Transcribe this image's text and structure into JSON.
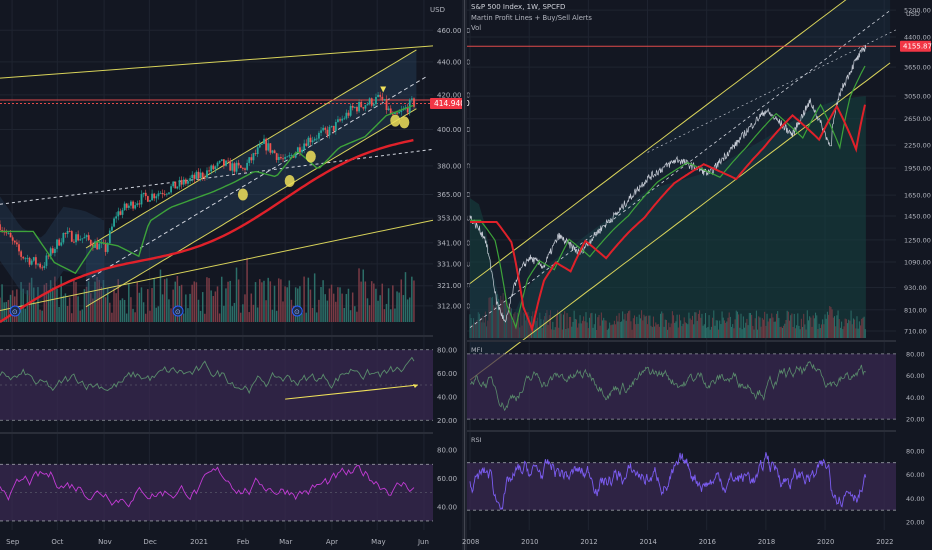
{
  "colors": {
    "background": "#131722",
    "grid": "#1f2430",
    "up": "#26a69a",
    "down": "#ef5350",
    "channel": "#d8d35a",
    "ma_long": "#e0212a",
    "ma_mid": "#3da33a",
    "rsi_fill": "#3a2a52",
    "mfi_line": "#5a8c6c",
    "rsi_line": "#7b5cf0",
    "rsi_pink": "#c23bd4",
    "price_tag": "#f23645",
    "highlight": "#f0e15a"
  },
  "left_chart": {
    "price_axis": {
      "ticks": [
        "460.0000",
        "440.0000",
        "420.0000",
        "400.0000",
        "380.0000",
        "365.0000",
        "353.0000",
        "341.0000",
        "331.0000",
        "321.0000",
        "312.0000"
      ],
      "tick_values": [
        460,
        440,
        420,
        400,
        380,
        365,
        353,
        341,
        331,
        321,
        312
      ],
      "unit": "USD",
      "current_price": "414.9400",
      "current_value": 414.94
    },
    "time_axis": {
      "labels": [
        "Sep",
        "Oct",
        "Nov",
        "Dec",
        "2021",
        "Feb",
        "Mar",
        "Apr",
        "May",
        "Jun"
      ]
    },
    "osc1_axis": {
      "ticks": [
        "80.00",
        "60.00",
        "40.00",
        "20.00"
      ],
      "values": [
        80,
        60,
        40,
        20
      ]
    },
    "osc2_axis": {
      "ticks": [
        "80.00",
        "60.00",
        "40.00"
      ],
      "values": [
        80,
        60,
        40
      ]
    },
    "marker_glyph": "⊙"
  },
  "right_chart": {
    "title": "S&P 500 Index, 1W, SPCFD",
    "indicator": "Martin Profit Lines + Buy/Sell Alerts",
    "volume_label": "Vol",
    "price_axis": {
      "unit": "USD",
      "ticks": [
        "5200.00",
        "4400.00",
        "3650.00",
        "3050.00",
        "2650.00",
        "2250.00",
        "1950.00",
        "1650.00",
        "1450.00",
        "1250.00",
        "1090.00",
        "930.00",
        "810.00",
        "710.00"
      ],
      "tick_values": [
        5200,
        4400,
        3650,
        3050,
        2650,
        2250,
        1950,
        1650,
        1450,
        1250,
        1090,
        930,
        810,
        710
      ],
      "current_price": "4155.87",
      "current_value": 4155.87
    },
    "time_axis": {
      "labels": [
        "2008",
        "2010",
        "2012",
        "2014",
        "2016",
        "2018",
        "2020",
        "2022"
      ]
    },
    "mfi_label": "MFI",
    "rsi_label": "RSI",
    "mfi_axis": {
      "ticks": [
        "80.00",
        "60.00",
        "40.00",
        "20.00"
      ],
      "values": [
        80,
        60,
        40,
        20
      ]
    },
    "rsi_axis": {
      "ticks": [
        "80.00",
        "60.00",
        "40.00",
        "20.00"
      ],
      "values": [
        80,
        60,
        40,
        20
      ]
    }
  },
  "chart_data": [
    {
      "type": "candlestick",
      "title": "",
      "x_range": [
        "2020-08-24",
        "2021-06-07"
      ],
      "ylim": [
        305,
        470
      ],
      "y_scale": "log",
      "series": [
        {
          "name": "",
          "values": [
            {
              "d": "2020-08-24",
              "v": 350
            },
            {
              "d": "2020-09-07",
              "v": 335
            },
            {
              "d": "2020-09-21",
              "v": 330
            },
            {
              "d": "2020-10-05",
              "v": 345
            },
            {
              "d": "2020-10-19",
              "v": 343
            },
            {
              "d": "2020-11-02",
              "v": 338
            },
            {
              "d": "2020-11-09",
              "v": 355
            },
            {
              "d": "2020-11-23",
              "v": 362
            },
            {
              "d": "2020-12-07",
              "v": 366
            },
            {
              "d": "2020-12-21",
              "v": 370
            },
            {
              "d": "2021-01-04",
              "v": 375
            },
            {
              "d": "2021-01-18",
              "v": 381
            },
            {
              "d": "2021-02-01",
              "v": 378
            },
            {
              "d": "2021-02-15",
              "v": 392
            },
            {
              "d": "2021-03-01",
              "v": 382
            },
            {
              "d": "2021-03-15",
              "v": 394
            },
            {
              "d": "2021-04-01",
              "v": 400
            },
            {
              "d": "2021-04-15",
              "v": 412
            },
            {
              "d": "2021-05-03",
              "v": 418
            },
            {
              "d": "2021-05-12",
              "v": 406
            },
            {
              "d": "2021-05-24",
              "v": 415
            }
          ]
        }
      ]
    },
    {
      "type": "candlestick",
      "title": "S&P 500 Index, 1W, SPCFD",
      "x_range": [
        "2008-01-01",
        "2022-06-01"
      ],
      "ylim": [
        680,
        5400
      ],
      "y_scale": "log",
      "series": [
        {
          "name": "",
          "values": [
            {
              "d": "2008.0",
              "v": 1440
            },
            {
              "d": "2008.5",
              "v": 1270
            },
            {
              "d": "2008.9",
              "v": 850
            },
            {
              "d": "2009.2",
              "v": 740
            },
            {
              "d": "2009.6",
              "v": 1000
            },
            {
              "d": "2010.0",
              "v": 1120
            },
            {
              "d": "2010.5",
              "v": 1060
            },
            {
              "d": "2011.0",
              "v": 1280
            },
            {
              "d": "2011.7",
              "v": 1150
            },
            {
              "d": "2012.5",
              "v": 1360
            },
            {
              "d": "2013.0",
              "v": 1480
            },
            {
              "d": "2014.0",
              "v": 1830
            },
            {
              "d": "2015.0",
              "v": 2060
            },
            {
              "d": "2016.1",
              "v": 1880
            },
            {
              "d": "2017.0",
              "v": 2270
            },
            {
              "d": "2018.0",
              "v": 2790
            },
            {
              "d": "2018.9",
              "v": 2400
            },
            {
              "d": "2019.5",
              "v": 2950
            },
            {
              "d": "2020.15",
              "v": 2260
            },
            {
              "d": "2020.5",
              "v": 3100
            },
            {
              "d": "2021.0",
              "v": 3750
            },
            {
              "d": "2021.38",
              "v": 4156
            }
          ]
        }
      ]
    }
  ]
}
